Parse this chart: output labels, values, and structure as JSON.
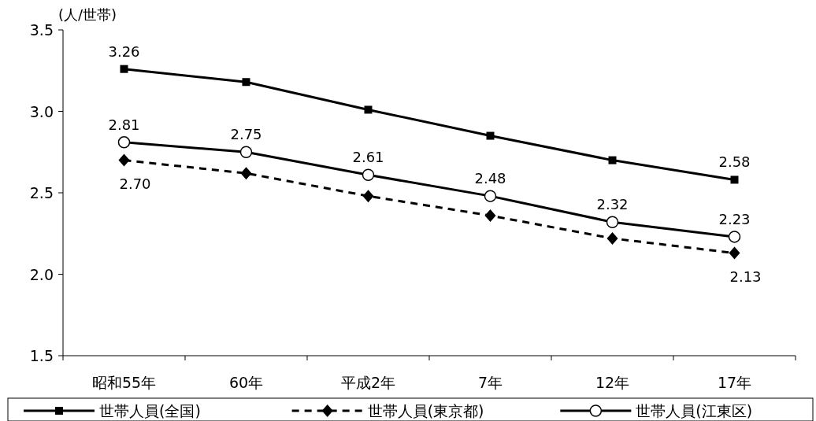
{
  "chart_data": {
    "type": "line",
    "ylabel": "(人/世帯)",
    "categories": [
      "昭和55年",
      "60年",
      "平成2年",
      "7年",
      "12年",
      "17年"
    ],
    "ylim": [
      1.5,
      3.5
    ],
    "yticks": [
      1.5,
      {
        "value": 2,
        "label": "2.0"
      },
      2.5,
      {
        "value": 3,
        "label": "3.0"
      },
      3.5
    ],
    "grid": false,
    "legend": "bottom",
    "series": [
      {
        "name": "世帯人員(全国)",
        "color": "#000000",
        "marker": "square",
        "line_style": "solid",
        "values": [
          3.26,
          3.18,
          3.01,
          2.85,
          2.7,
          2.58
        ],
        "value_labels": [
          "3.26",
          null,
          null,
          null,
          null,
          "2.58"
        ]
      },
      {
        "name": "世帯人員(東京都)",
        "color": "#000000",
        "marker": "diamond",
        "line_style": "dashed",
        "values": [
          2.7,
          2.62,
          2.48,
          2.36,
          2.22,
          2.13
        ],
        "value_labels": [
          "2.70",
          null,
          null,
          null,
          null,
          "2.13"
        ]
      },
      {
        "name": "世帯人員(江東区)",
        "color": "#000000",
        "marker": "circle",
        "line_style": "solid",
        "values": [
          2.81,
          2.75,
          2.61,
          2.48,
          2.32,
          2.23
        ],
        "value_labels": [
          "2.81",
          "2.75",
          "2.61",
          "2.48",
          "2.32",
          "2.23"
        ]
      }
    ]
  }
}
